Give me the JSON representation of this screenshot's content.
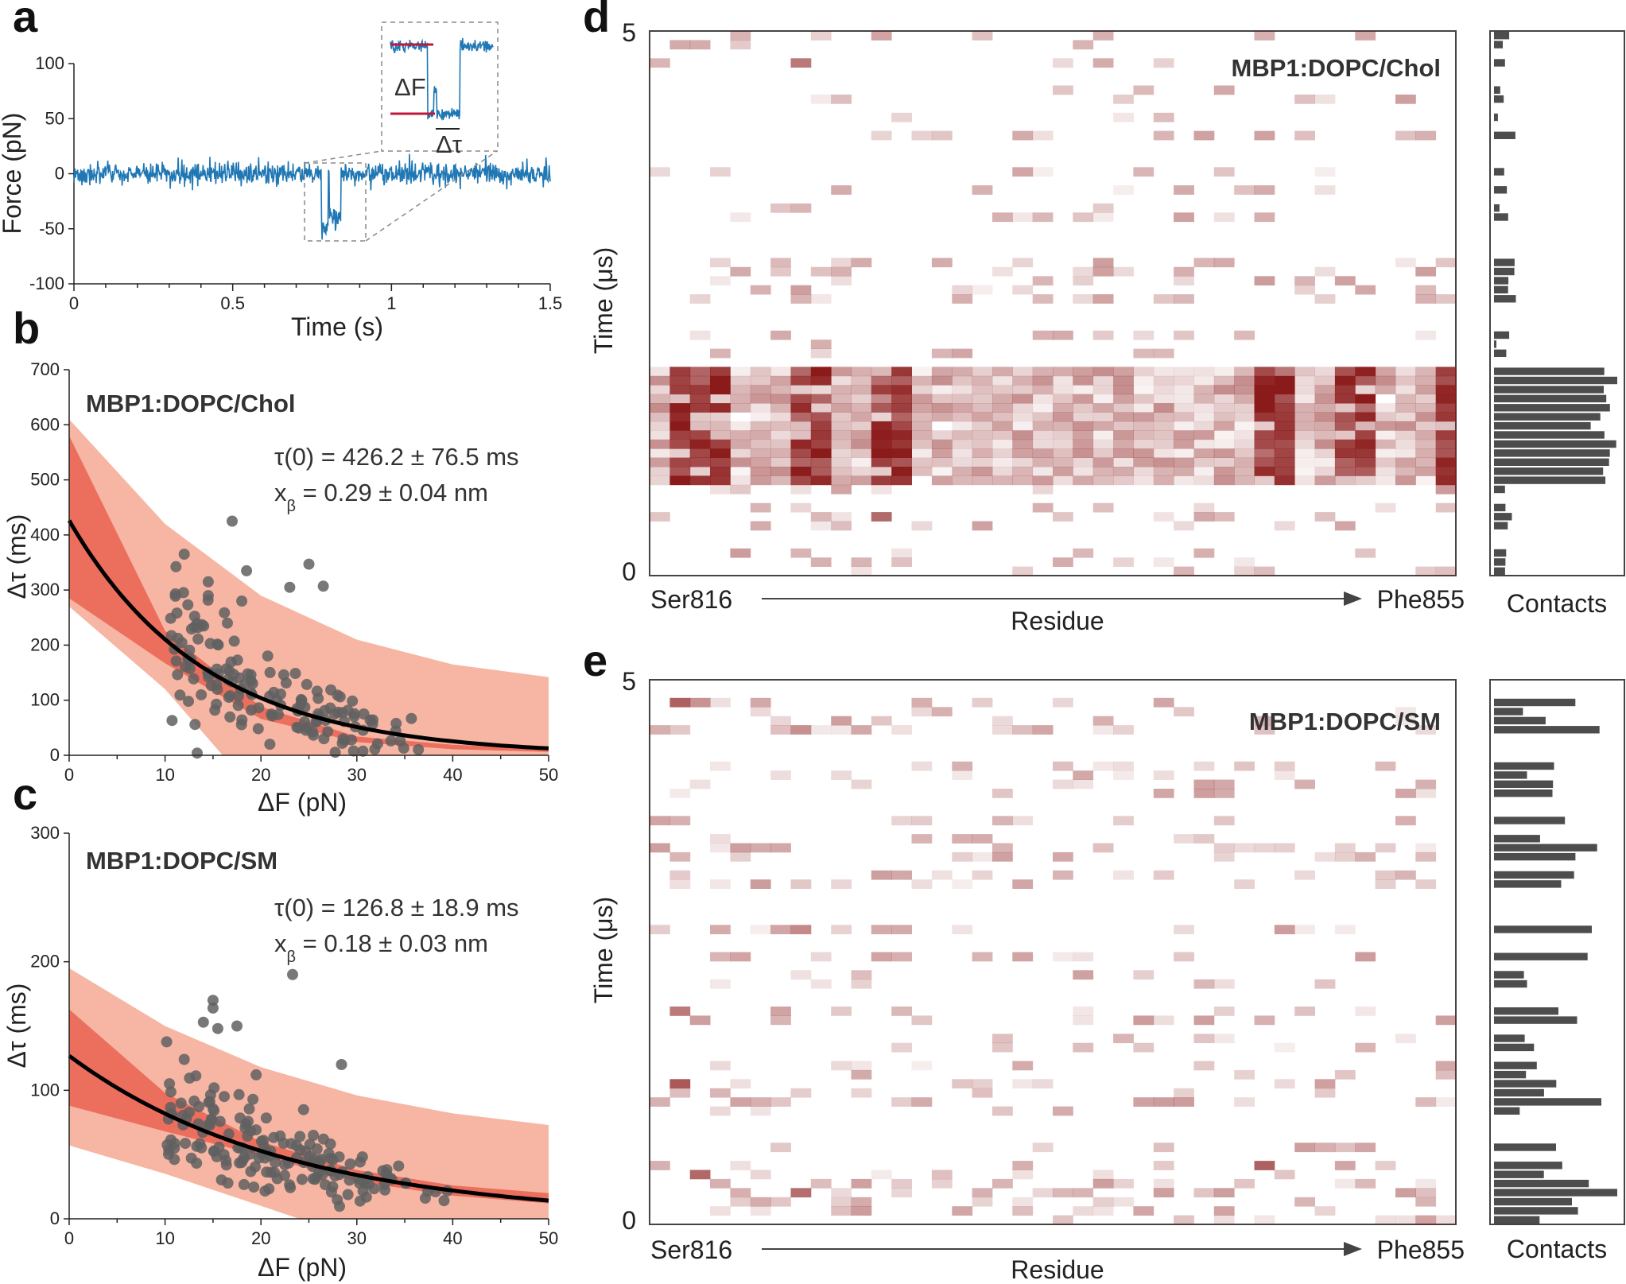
{
  "colors": {
    "trace": "#1f77b4",
    "marker": "#c0173b",
    "bandOuter": "#f7b6a4",
    "bandInner": "#ec6f5d",
    "fit": "#000000",
    "points": "#606060",
    "heat": "#8b1a1a",
    "bars": "#4d4d4d"
  },
  "panels": {
    "a": {
      "letter": "a"
    },
    "b": {
      "letter": "b"
    },
    "c": {
      "letter": "c"
    },
    "d": {
      "letter": "d"
    },
    "e": {
      "letter": "e"
    }
  },
  "chart_data": [
    {
      "id": "a",
      "type": "line",
      "xlabel": "Time (s)",
      "ylabel": "Force (pN)",
      "xlim": [
        0,
        1.5
      ],
      "ylim": [
        -100,
        100
      ],
      "xticks": [
        0,
        0.5,
        1,
        1.5
      ],
      "xticklabels": [
        "0",
        "0.5",
        "1",
        "1.5"
      ],
      "yticks": [
        -100,
        -50,
        0,
        50,
        100
      ],
      "yticklabels": [
        "-100",
        "-50",
        "0",
        "50",
        "100"
      ],
      "event": {
        "start": 0.78,
        "end": 0.84,
        "level": -42,
        "secondary_start": 0.8,
        "secondary_end": 0.805
      },
      "noise": 5,
      "inset": {
        "delta_f_label": "ΔF",
        "delta_tau_label": "Δτ"
      }
    },
    {
      "id": "b",
      "type": "scatter",
      "title": "MBP1:DOPC/Chol",
      "xlabel": "ΔF (pN)",
      "ylabel": "Δτ (ms)",
      "xlim": [
        0,
        50
      ],
      "ylim": [
        0,
        700
      ],
      "xticks": [
        0,
        10,
        20,
        30,
        40,
        50
      ],
      "yticks": [
        0,
        100,
        200,
        300,
        400,
        500,
        600,
        700
      ],
      "fit": {
        "tau0": 426.2,
        "xbeta": 0.29,
        "kT": 4.11
      },
      "inner_band": [
        {
          "x": 0,
          "y": 580
        },
        {
          "x": 10,
          "y": 226
        },
        {
          "x": 20,
          "y": 88
        },
        {
          "x": 30,
          "y": 34
        },
        {
          "x": 40,
          "y": 19
        },
        {
          "x": 50,
          "y": 12
        }
      ],
      "inner_band_low": [
        {
          "x": 0,
          "y": 285
        },
        {
          "x": 10,
          "y": 167
        },
        {
          "x": 20,
          "y": 66
        },
        {
          "x": 30,
          "y": 24
        },
        {
          "x": 40,
          "y": 11
        },
        {
          "x": 50,
          "y": 6
        }
      ],
      "outer_band_high": [
        {
          "x": 0,
          "y": 610
        },
        {
          "x": 10,
          "y": 420
        },
        {
          "x": 20,
          "y": 290
        },
        {
          "x": 30,
          "y": 210
        },
        {
          "x": 40,
          "y": 165
        },
        {
          "x": 50,
          "y": 142
        }
      ],
      "outer_band_low": [
        {
          "x": 0,
          "y": 270
        },
        {
          "x": 10,
          "y": 120
        },
        {
          "x": 16,
          "y": 0
        }
      ],
      "annotation_tau": "τ(0) = 426.2 ± 76.5 ms",
      "annotation_x": "x",
      "annotation_x_sub": "β",
      "annotation_x_rest": " = 0.29 ± 0.04 nm",
      "outliers": [
        [
          12,
          365
        ],
        [
          14.5,
          315
        ],
        [
          14.5,
          290
        ],
        [
          17,
          425
        ],
        [
          18,
          280
        ],
        [
          18.5,
          335
        ],
        [
          23,
          305
        ],
        [
          25,
          347
        ],
        [
          26.5,
          307
        ],
        [
          16.5,
          240
        ]
      ],
      "cloud": {
        "xmin": 10.5,
        "xmax": 41,
        "count": 150,
        "seed": 7
      }
    },
    {
      "id": "c",
      "type": "scatter",
      "title": "MBP1:DOPC/SM",
      "xlabel": "ΔF (pN)",
      "ylabel": "Δτ (ms)",
      "xlim": [
        0,
        50
      ],
      "ylim": [
        0,
        300
      ],
      "xticks": [
        0,
        10,
        20,
        30,
        40,
        50
      ],
      "yticks": [
        0,
        100,
        200,
        300
      ],
      "fit": {
        "tau0": 126.8,
        "xbeta": 0.18,
        "kT": 4.11
      },
      "inner_band": [
        {
          "x": 0,
          "y": 163
        },
        {
          "x": 10,
          "y": 98
        },
        {
          "x": 20,
          "y": 60
        },
        {
          "x": 30,
          "y": 38
        },
        {
          "x": 40,
          "y": 26
        },
        {
          "x": 50,
          "y": 20
        }
      ],
      "inner_band_low": [
        {
          "x": 0,
          "y": 88
        },
        {
          "x": 10,
          "y": 68
        },
        {
          "x": 20,
          "y": 49
        },
        {
          "x": 30,
          "y": 29
        },
        {
          "x": 40,
          "y": 18
        },
        {
          "x": 50,
          "y": 12
        }
      ],
      "outer_band_high": [
        {
          "x": 0,
          "y": 195
        },
        {
          "x": 10,
          "y": 150
        },
        {
          "x": 20,
          "y": 118
        },
        {
          "x": 30,
          "y": 96
        },
        {
          "x": 40,
          "y": 82
        },
        {
          "x": 50,
          "y": 73
        }
      ],
      "outer_band_low": [
        {
          "x": 0,
          "y": 57
        },
        {
          "x": 10,
          "y": 35
        },
        {
          "x": 20,
          "y": 10
        },
        {
          "x": 24,
          "y": 0
        }
      ],
      "annotation_tau": "τ(0) = 126.8 ± 18.9 ms",
      "annotation_x": "x",
      "annotation_x_sub": "β",
      "annotation_x_rest": " = 0.18 ± 0.03 nm",
      "outliers": [
        [
          23.3,
          190
        ],
        [
          15,
          170
        ],
        [
          15,
          164
        ],
        [
          14,
          153
        ],
        [
          17.5,
          150
        ],
        [
          15.5,
          148
        ],
        [
          28.4,
          120
        ],
        [
          12,
          124
        ],
        [
          19.5,
          112
        ]
      ],
      "cloud": {
        "xmin": 10,
        "xmax": 41,
        "count": 170,
        "seed": 11
      }
    },
    {
      "id": "d",
      "type": "heatmap",
      "title": "MBP1:DOPC/Chol",
      "xlabel": "Residue",
      "ylabel": "Time (μs)",
      "start_label": "Ser816",
      "end_label": "Phe855",
      "ymin_label": "0",
      "ymax_label": "5",
      "side_label": "Contacts",
      "columns": 40,
      "rows": 60,
      "seed": 21,
      "dense_rows": [
        [
          10,
          22
        ]
      ],
      "hot_columns": [
        2,
        3,
        8,
        12,
        31,
        35,
        40
      ],
      "sparse_level": 0.18
    },
    {
      "id": "e",
      "type": "heatmap",
      "title": "MBP1:DOPC/SM",
      "xlabel": "Residue",
      "ylabel": "Time (μs)",
      "start_label": "Ser816",
      "end_label": "Phe855",
      "ymin_label": "0",
      "ymax_label": "5",
      "side_label": "Contacts",
      "columns": 40,
      "rows": 60,
      "seed": 33,
      "dense_rows": [],
      "hot_columns": [
        2,
        3,
        8,
        31
      ],
      "sparse_level": 0.22
    }
  ]
}
